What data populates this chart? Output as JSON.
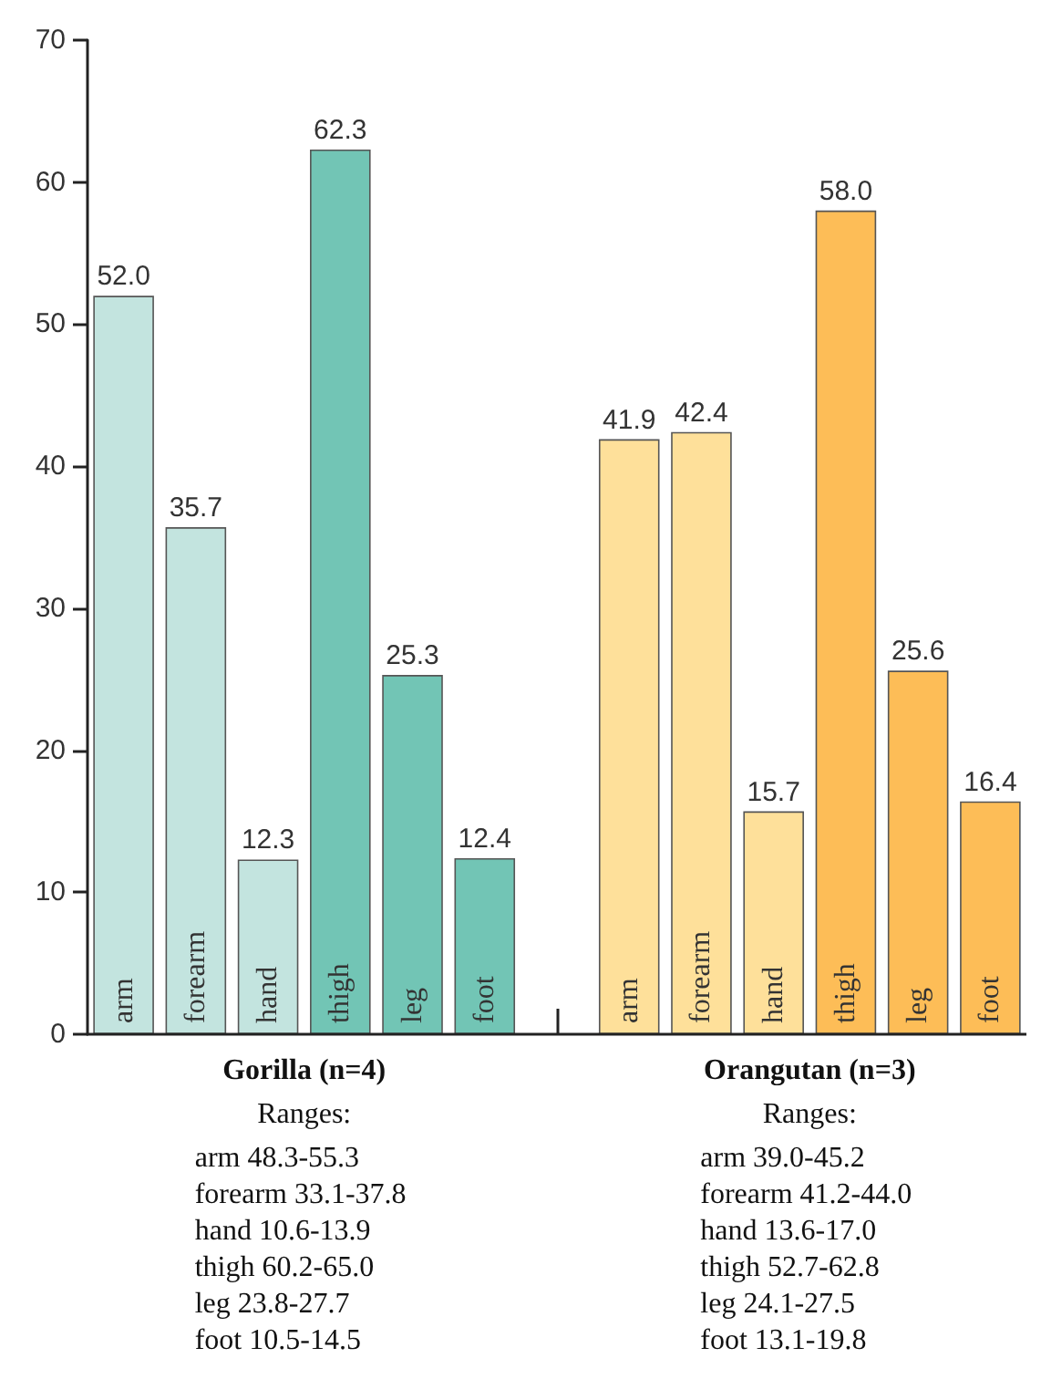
{
  "chart_data": {
    "type": "bar",
    "categories": [
      "arm",
      "forearm",
      "hand",
      "thigh",
      "leg",
      "foot",
      null,
      "arm",
      "forearm",
      "hand",
      "thigh",
      "leg",
      "foot"
    ],
    "values": [
      52.0,
      35.7,
      12.3,
      62.3,
      25.3,
      12.4,
      null,
      41.9,
      42.4,
      15.7,
      58.0,
      25.6,
      16.4
    ],
    "value_labels": [
      "52.0",
      "35.7",
      "12.3",
      "62.3",
      "25.3",
      "12.4",
      null,
      "41.9",
      "42.4",
      "15.7",
      "58.0",
      "25.6",
      "16.4"
    ],
    "colors": [
      "#c3e4df",
      "#c3e4df",
      "#c3e4df",
      "#72c5b5",
      "#72c5b5",
      "#72c5b5",
      null,
      "#fee09a",
      "#fee09a",
      "#fee09a",
      "#fdbd57",
      "#fdbd57",
      "#fdbd57"
    ],
    "ylim": [
      0,
      70
    ],
    "yticks": [
      0,
      10,
      20,
      30,
      40,
      50,
      60,
      70
    ],
    "grid": false,
    "annotations": [
      "Gorilla (n=4)",
      "Ranges:\narm 48.3-55.3\nforearm 33.1-37.8\nhand 10.6-13.9\nthigh 60.2-65.0\nleg 23.8-27.7\nfoot 10.5-14.5",
      "Orangutan (n=3)",
      "Ranges:\narm 39.0-45.2\nforearm 41.2-44.0\nhand 13.6-17.0\nthigh 52.7-62.8\nleg 24.1-27.5\nfoot 13.1-19.8"
    ]
  }
}
